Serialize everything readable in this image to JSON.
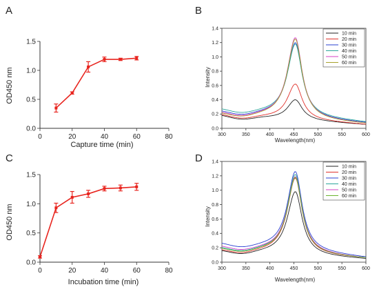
{
  "chart_data": [
    {
      "panel": "A",
      "type": "line",
      "xlabel": "Capture time (min)",
      "ylabel": "OD450 nm",
      "xlim": [
        0,
        80
      ],
      "ylim": [
        0,
        1.5
      ],
      "xticks": [
        "0",
        "20",
        "40",
        "60",
        "80"
      ],
      "yticks": [
        "0.0",
        "0.5",
        "1.0",
        "1.5"
      ],
      "color": "#e8241e",
      "error_bars": true,
      "grid": false,
      "series": [
        {
          "x": [
            10,
            20,
            30,
            40,
            50,
            60
          ],
          "y": [
            0.35,
            0.61,
            1.06,
            1.19,
            1.19,
            1.21
          ],
          "err": [
            0.07,
            0.02,
            0.09,
            0.04,
            0.02,
            0.03
          ]
        }
      ]
    },
    {
      "panel": "B",
      "type": "line",
      "xlabel": "Wavelength(nm)",
      "ylabel": "Intensity",
      "xlim": [
        300,
        600
      ],
      "ylim": [
        0,
        1.4
      ],
      "xticks": [
        "300",
        "350",
        "400",
        "450",
        "500",
        "550",
        "600"
      ],
      "yticks": [
        "0.0",
        "0.2",
        "0.4",
        "0.6",
        "0.8",
        "1.0",
        "1.2",
        "1.4"
      ],
      "legend_position": "top-right",
      "grid": false,
      "series": [
        {
          "name": "10 min",
          "color": "#222222",
          "peak": 0.4,
          "base_left": 0.19,
          "base_right": 0.05
        },
        {
          "name": "20 min",
          "color": "#e0302a",
          "peak": 0.62,
          "base_left": 0.2,
          "base_right": 0.05
        },
        {
          "name": "30 min",
          "color": "#2a3fd1",
          "peak": 1.2,
          "base_left": 0.24,
          "base_right": 0.07
        },
        {
          "name": "40 min",
          "color": "#2aa59a",
          "peak": 1.18,
          "base_left": 0.27,
          "base_right": 0.08
        },
        {
          "name": "50 min",
          "color": "#d63fc6",
          "peak": 1.27,
          "base_left": 0.22,
          "base_right": 0.06
        },
        {
          "name": "60 min",
          "color": "#a6a12a",
          "peak": 1.25,
          "base_left": 0.21,
          "base_right": 0.06
        }
      ]
    },
    {
      "panel": "C",
      "type": "line",
      "xlabel": "Incubation time (min)",
      "ylabel": "OD450 nm",
      "xlim": [
        0,
        80
      ],
      "ylim": [
        0,
        1.5
      ],
      "xticks": [
        "0",
        "20",
        "40",
        "60",
        "80"
      ],
      "yticks": [
        "0.0",
        "0.5",
        "1.0",
        "1.5"
      ],
      "color": "#e8241e",
      "error_bars": true,
      "grid": false,
      "series": [
        {
          "x": [
            0,
            10,
            20,
            30,
            40,
            50,
            60
          ],
          "y": [
            0.09,
            0.93,
            1.11,
            1.17,
            1.26,
            1.27,
            1.29
          ],
          "err": [
            0.02,
            0.08,
            0.1,
            0.06,
            0.04,
            0.05,
            0.06
          ]
        }
      ]
    },
    {
      "panel": "D",
      "type": "line",
      "xlabel": "Wavelength(nm)",
      "ylabel": "Intensity",
      "xlim": [
        300,
        600
      ],
      "ylim": [
        0,
        1.4
      ],
      "xticks": [
        "300",
        "350",
        "400",
        "450",
        "500",
        "550",
        "600"
      ],
      "yticks": [
        "0.0",
        "0.2",
        "0.4",
        "0.6",
        "0.8",
        "1.0",
        "1.2",
        "1.4"
      ],
      "legend_position": "top-right",
      "grid": false,
      "series": [
        {
          "name": "10 min",
          "color": "#222222",
          "peak": 0.98,
          "base_left": 0.16,
          "base_right": 0.04
        },
        {
          "name": "20 min",
          "color": "#e0302a",
          "peak": 1.17,
          "base_left": 0.17,
          "base_right": 0.05
        },
        {
          "name": "30 min",
          "color": "#2a3fd1",
          "peak": 1.26,
          "base_left": 0.26,
          "base_right": 0.06
        },
        {
          "name": "40 min",
          "color": "#2aa59a",
          "peak": 1.22,
          "base_left": 0.2,
          "base_right": 0.05
        },
        {
          "name": "50 min",
          "color": "#d63fc6",
          "peak": 1.19,
          "base_left": 0.22,
          "base_right": 0.05
        },
        {
          "name": "60 min",
          "color": "#6bb32e",
          "peak": 1.18,
          "base_left": 0.19,
          "base_right": 0.05
        }
      ]
    }
  ]
}
